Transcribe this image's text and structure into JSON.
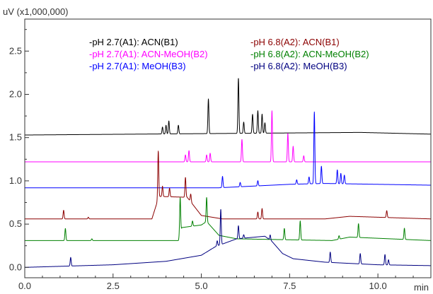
{
  "chart_data": {
    "type": "line",
    "y_unit_label": "uV (x1,000,000)",
    "x_unit_label": "min",
    "xlim": [
      0.0,
      11.5
    ],
    "ylim": [
      -0.12,
      2.87
    ],
    "x_ticks": [
      0.0,
      2.5,
      5.0,
      7.5,
      10.0
    ],
    "x_tick_labels": [
      "0.0",
      "2.5",
      "5.0",
      "7.5",
      "10.0"
    ],
    "y_ticks": [
      0.0,
      0.5,
      1.0,
      1.5,
      2.0,
      2.5
    ],
    "y_tick_labels": [
      "0.0",
      "0.5",
      "1.0",
      "1.5",
      "2.0",
      "2.5"
    ],
    "grid": false,
    "legend_position": "top",
    "series": [
      {
        "name": "-pH 2.7(A1): ACN(B1)",
        "color": "#000000",
        "baseline": 1.53,
        "drift": [
          [
            0,
            0
          ],
          [
            9.5,
            0.03
          ],
          [
            11.5,
            0.01
          ]
        ],
        "peaks": [
          [
            3.9,
            0.08
          ],
          [
            4.0,
            0.1
          ],
          [
            4.08,
            0.15
          ],
          [
            4.35,
            0.1
          ],
          [
            5.2,
            0.4
          ],
          [
            6.05,
            0.64
          ],
          [
            6.2,
            0.13
          ],
          [
            6.45,
            0.22
          ],
          [
            6.6,
            0.26
          ],
          [
            6.72,
            0.22
          ],
          [
            6.8,
            0.12
          ]
        ]
      },
      {
        "name": "-pH 2.7(A1): ACN-MeOH(B2)",
        "color": "#ff00ff",
        "baseline": 1.22,
        "drift": [
          [
            0,
            0
          ],
          [
            11.5,
            0.0
          ]
        ],
        "peaks": [
          [
            4.55,
            0.08
          ],
          [
            4.65,
            0.13
          ],
          [
            5.15,
            0.08
          ],
          [
            5.25,
            0.1
          ],
          [
            6.15,
            0.26
          ],
          [
            7.0,
            0.59
          ],
          [
            7.45,
            0.33
          ],
          [
            7.6,
            0.18
          ],
          [
            7.9,
            0.07
          ]
        ]
      },
      {
        "name": "-pH 2.7(A1): MeOH(B3)",
        "color": "#0000ff",
        "baseline": 0.92,
        "drift": [
          [
            0,
            0
          ],
          [
            5.5,
            0.0
          ],
          [
            7.5,
            0.04
          ],
          [
            8.5,
            0.05
          ],
          [
            11.5,
            0.03
          ]
        ],
        "peaks": [
          [
            5.6,
            0.13
          ],
          [
            6.1,
            0.05
          ],
          [
            6.6,
            0.06
          ],
          [
            7.7,
            0.05
          ],
          [
            8.05,
            0.08
          ],
          [
            8.2,
            0.83
          ],
          [
            8.4,
            0.2
          ],
          [
            8.85,
            0.16
          ],
          [
            8.95,
            0.12
          ],
          [
            9.05,
            0.1
          ]
        ]
      },
      {
        "name": "-pH 6.8(A2): ACN(B1)",
        "color": "#8b0000",
        "baseline": 0.56,
        "drift": [
          [
            0,
            0
          ],
          [
            3.6,
            0.0
          ],
          [
            3.8,
            0.26
          ],
          [
            4.6,
            0.25
          ],
          [
            5.0,
            0.04
          ],
          [
            5.6,
            0.0
          ],
          [
            8.5,
            0.0
          ],
          [
            9.2,
            0.03
          ],
          [
            11.5,
            0.0
          ]
        ],
        "peaks": [
          [
            1.1,
            0.1
          ],
          [
            1.8,
            0.02
          ],
          [
            3.78,
            0.55
          ],
          [
            3.9,
            0.12
          ],
          [
            4.1,
            0.1
          ],
          [
            4.55,
            0.23
          ],
          [
            4.7,
            0.09
          ],
          [
            6.6,
            0.08
          ],
          [
            6.72,
            0.12
          ],
          [
            10.25,
            0.08
          ]
        ]
      },
      {
        "name": "-pH 6.8(A2): ACN-MeOH(B2)",
        "color": "#008000",
        "baseline": 0.31,
        "drift": [
          [
            0,
            0
          ],
          [
            4.35,
            0.0
          ],
          [
            4.45,
            0.15
          ],
          [
            5.0,
            0.18
          ],
          [
            5.15,
            0.22
          ],
          [
            5.5,
            0.06
          ],
          [
            6.0,
            0.02
          ],
          [
            8.7,
            0.0
          ],
          [
            9.2,
            0.04
          ],
          [
            11.5,
            0.0
          ]
        ],
        "peaks": [
          [
            1.15,
            0.14
          ],
          [
            1.9,
            0.02
          ],
          [
            4.4,
            0.42
          ],
          [
            4.75,
            0.06
          ],
          [
            5.15,
            0.28
          ],
          [
            7.35,
            0.13
          ],
          [
            7.8,
            0.22
          ],
          [
            8.9,
            0.04
          ],
          [
            9.45,
            0.16
          ],
          [
            10.75,
            0.13
          ]
        ]
      },
      {
        "name": "-pH 6.8(A2): MeOH(B3)",
        "color": "#000080",
        "baseline": 0.0,
        "drift": [
          [
            0,
            0
          ],
          [
            2.5,
            0.03
          ],
          [
            4.0,
            0.07
          ],
          [
            5.0,
            0.14
          ],
          [
            5.4,
            0.24
          ],
          [
            6.0,
            0.33
          ],
          [
            6.8,
            0.36
          ],
          [
            7.0,
            0.3
          ],
          [
            7.3,
            0.16
          ],
          [
            7.6,
            0.1
          ],
          [
            8.5,
            0.06
          ],
          [
            10.0,
            0.03
          ],
          [
            11.5,
            0.02
          ]
        ],
        "peaks": [
          [
            1.3,
            0.1
          ],
          [
            5.45,
            0.06
          ],
          [
            5.55,
            0.41
          ],
          [
            6.05,
            0.15
          ],
          [
            6.2,
            0.04
          ],
          [
            6.95,
            0.06
          ],
          [
            8.65,
            0.12
          ],
          [
            9.5,
            0.12
          ],
          [
            10.2,
            0.12
          ],
          [
            10.3,
            0.06
          ]
        ]
      }
    ]
  }
}
